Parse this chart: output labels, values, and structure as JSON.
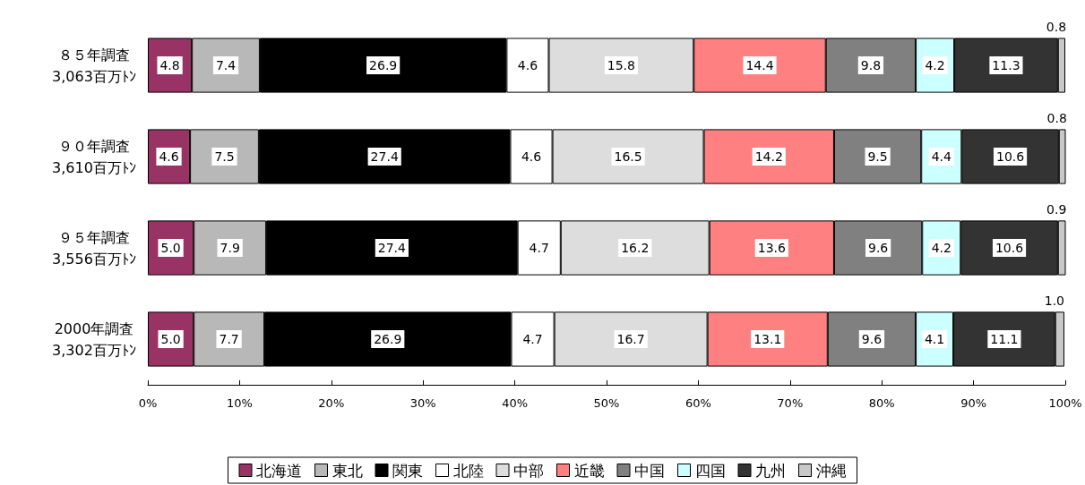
{
  "chart_data": {
    "type": "bar",
    "orientation": "horizontal",
    "stacked": true,
    "grid": false,
    "legend": "bottom",
    "categories": [
      "８５年調査\n3,063百万ﾄﾝ",
      "９０年調査\n3,610百万ﾄﾝ",
      "９５年調査\n3,556百万ﾄﾝ",
      "2000年調査\n3,302百万ﾄﾝ"
    ],
    "xlim": [
      0,
      100
    ],
    "xticks": [
      {
        "value": 0,
        "label": "0%"
      },
      {
        "value": 10,
        "label": "10%"
      },
      {
        "value": 20,
        "label": "20%"
      },
      {
        "value": 30,
        "label": "30%"
      },
      {
        "value": 40,
        "label": "40%"
      },
      {
        "value": 50,
        "label": "50%"
      },
      {
        "value": 60,
        "label": "60%"
      },
      {
        "value": 70,
        "label": "70%"
      },
      {
        "value": 80,
        "label": "80%"
      },
      {
        "value": 90,
        "label": "90%"
      },
      {
        "value": 100,
        "label": "100%"
      }
    ],
    "series": [
      {
        "name": "北海道",
        "color": "#993366",
        "values": [
          4.8,
          4.6,
          5.0,
          5.0
        ],
        "value_labels": [
          "4.8",
          "4.6",
          "5.0",
          "5.0"
        ]
      },
      {
        "name": "東北",
        "color": "#b8b8b8",
        "values": [
          7.4,
          7.5,
          7.9,
          7.7
        ],
        "value_labels": [
          "7.4",
          "7.5",
          "7.9",
          "7.7"
        ]
      },
      {
        "name": "関東",
        "color": "#000000",
        "values": [
          26.9,
          27.4,
          27.4,
          26.9
        ],
        "value_labels": [
          "26.9",
          "27.4",
          "27.4",
          "26.9"
        ]
      },
      {
        "name": "北陸",
        "color": "#ffffff",
        "values": [
          4.6,
          4.6,
          4.7,
          4.7
        ],
        "value_labels": [
          "4.6",
          "4.6",
          "4.7",
          "4.7"
        ]
      },
      {
        "name": "中部",
        "color": "#dddddd",
        "values": [
          15.8,
          16.5,
          16.2,
          16.7
        ],
        "value_labels": [
          "15.8",
          "16.5",
          "16.2",
          "16.7"
        ]
      },
      {
        "name": "近畿",
        "color": "#ff8080",
        "values": [
          14.4,
          14.2,
          13.6,
          13.1
        ],
        "value_labels": [
          "14.4",
          "14.2",
          "13.6",
          "13.1"
        ]
      },
      {
        "name": "中国",
        "color": "#808080",
        "values": [
          9.8,
          9.5,
          9.6,
          9.6
        ],
        "value_labels": [
          "9.8",
          "9.5",
          "9.6",
          "9.6"
        ]
      },
      {
        "name": "四国",
        "color": "#ccffff",
        "values": [
          4.2,
          4.4,
          4.2,
          4.1
        ],
        "value_labels": [
          "4.2",
          "4.4",
          "4.2",
          "4.1"
        ]
      },
      {
        "name": "九州",
        "color": "#333333",
        "values": [
          11.3,
          10.6,
          10.6,
          11.1
        ],
        "value_labels": [
          "11.3",
          "10.6",
          "10.6",
          "11.1"
        ]
      },
      {
        "name": "沖縄",
        "color": "#c8c8c8",
        "values": [
          0.8,
          0.8,
          0.9,
          1.0
        ],
        "value_labels": [
          "0.8",
          "0.8",
          "0.9",
          "1.0"
        ]
      }
    ]
  }
}
